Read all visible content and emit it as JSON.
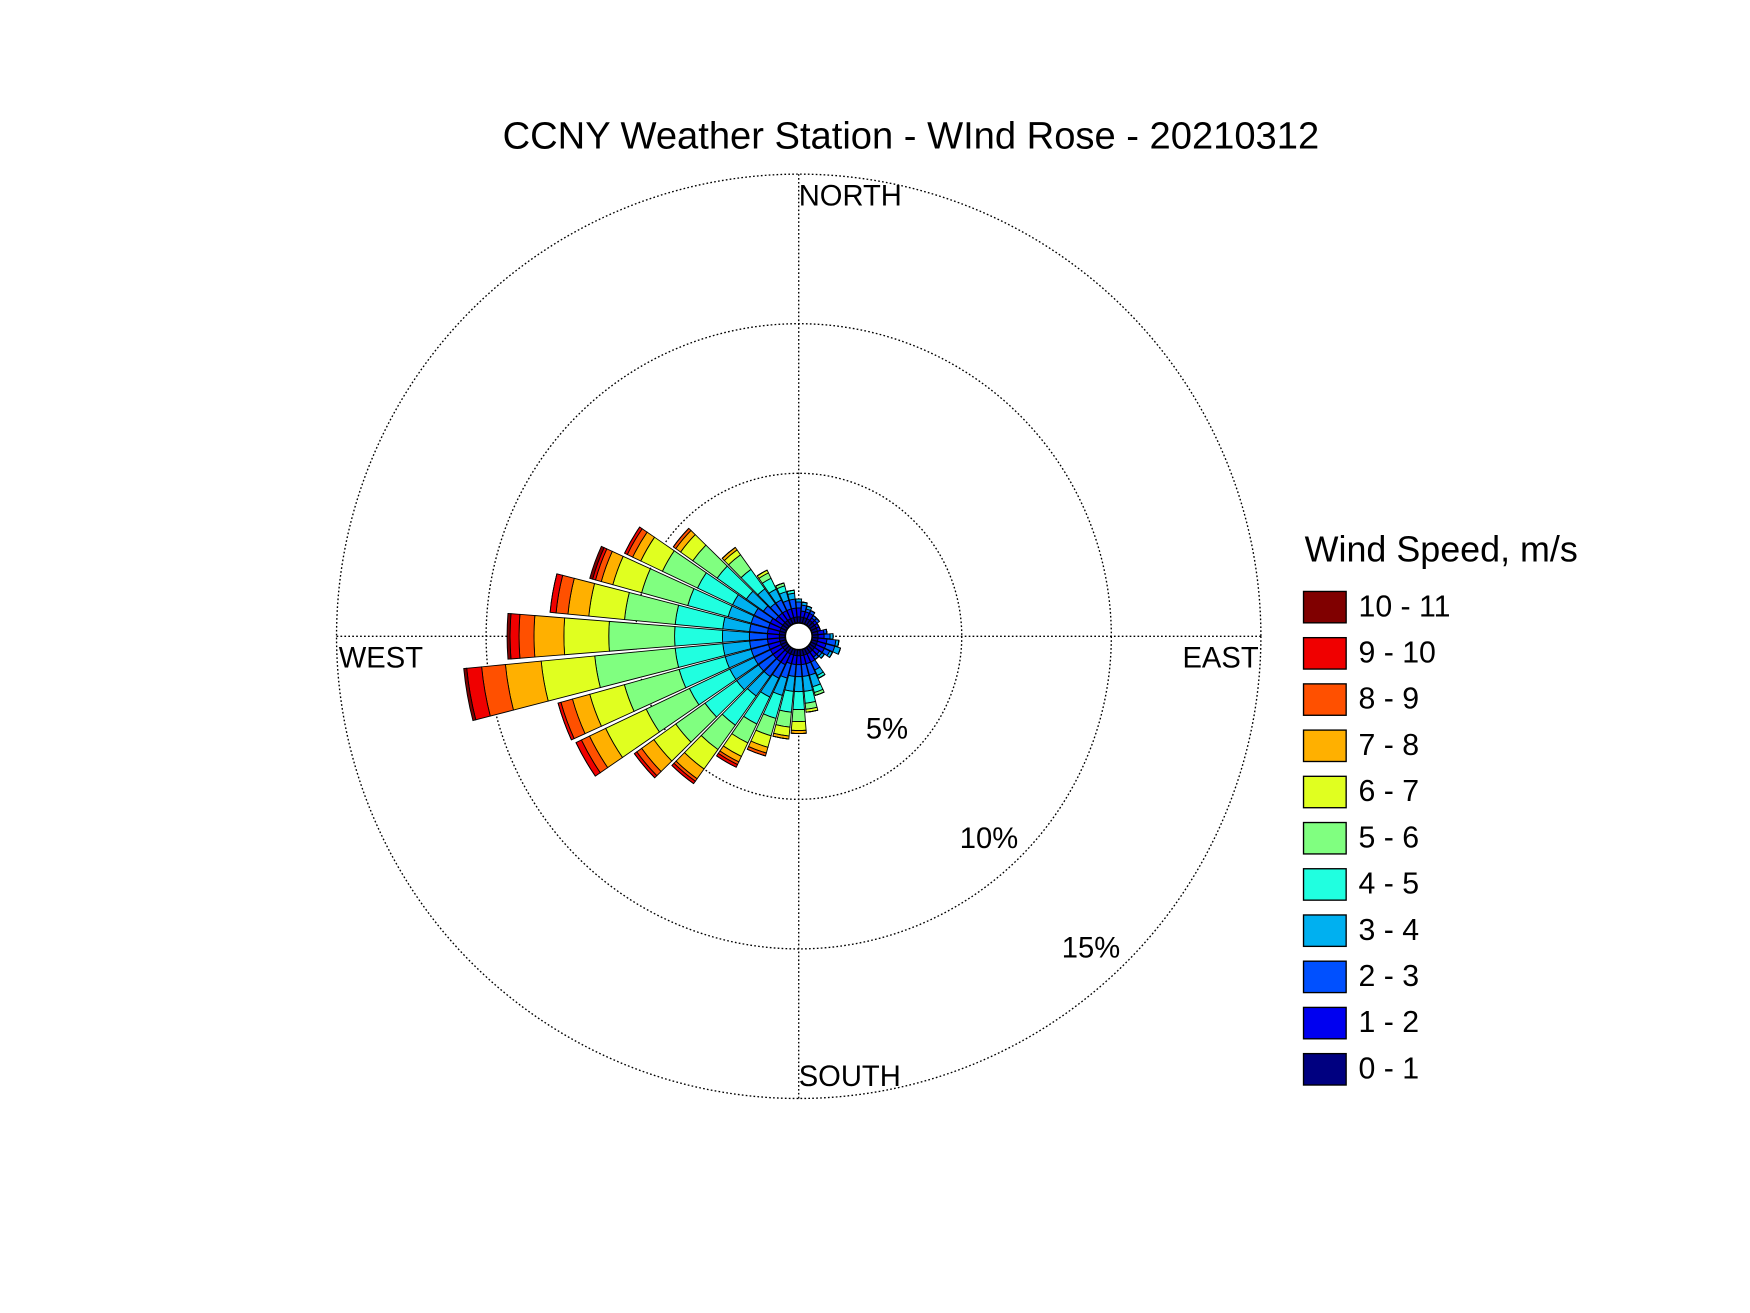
{
  "chart_data": {
    "type": "windrose",
    "title": "CCNY Weather Station - WInd Rose - 20210312",
    "legend_title": "Wind Speed, m/s",
    "axis_labels": [
      "NORTH",
      "EAST",
      "SOUTH",
      "WEST"
    ],
    "categories": [
      null,
      null,
      null,
      null,
      null,
      null,
      null,
      null,
      null,
      null,
      null,
      null,
      null,
      null,
      null,
      null,
      null,
      null,
      null,
      null,
      null,
      null,
      null,
      null,
      null,
      null,
      null,
      null,
      null,
      null,
      null,
      null,
      null,
      null,
      null,
      null
    ],
    "rlim": [
      0,
      15
    ],
    "rticks": [
      {
        "value": 5,
        "label": "5%"
      },
      {
        "value": 10,
        "label": "10%"
      },
      {
        "value": 15,
        "label": "15%"
      }
    ],
    "grid": true,
    "series": [
      {
        "name": "0 - 1",
        "color": "#000080",
        "values": [
          0.2,
          0.2,
          0.2,
          0.2,
          0.2,
          0.2,
          0.2,
          0.2,
          0.2,
          0.2,
          0.2,
          0.2,
          0.2,
          0.2,
          0.2,
          0.2,
          0.2,
          0.2,
          0.2,
          0.2,
          0.2,
          0.2,
          0.2,
          0.2,
          0.2,
          0.2,
          0.2,
          0.2,
          0.2,
          0.2,
          0.2,
          0.2,
          0.2,
          0.2,
          0.2,
          0.2
        ]
      },
      {
        "name": "1 - 2",
        "color": "#0000f0",
        "values": [
          0.3,
          0.2,
          0.2,
          0.2,
          0.1,
          0.1,
          0.1,
          0.1,
          0.2,
          0.2,
          0.3,
          0.3,
          0.3,
          0.2,
          0.2,
          0.3,
          0.3,
          0.3,
          0.3,
          0.3,
          0.3,
          0.4,
          0.4,
          0.4,
          0.4,
          0.4,
          0.4,
          0.4,
          0.4,
          0.4,
          0.4,
          0.3,
          0.3,
          0.3,
          0.3,
          0.3
        ]
      },
      {
        "name": "2 - 3",
        "color": "#0050ff",
        "values": [
          0.2,
          0.2,
          0.1,
          0.1,
          0.1,
          0.1,
          0,
          0,
          0.1,
          0.2,
          0.3,
          0.3,
          0.2,
          0.1,
          0.1,
          0.3,
          0.4,
          0.4,
          0.4,
          0.4,
          0.5,
          0.5,
          0.6,
          0.6,
          0.6,
          0.6,
          0.6,
          0.6,
          0.6,
          0.6,
          0.6,
          0.5,
          0.4,
          0.4,
          0.3,
          0.3
        ]
      },
      {
        "name": "3 - 4",
        "color": "#00b0f0",
        "values": [
          0.1,
          0.1,
          0.1,
          0,
          0,
          0,
          0,
          0,
          0,
          0.1,
          0.1,
          0.2,
          0.1,
          0.1,
          0,
          0.2,
          0.4,
          0.5,
          0.5,
          0.5,
          0.6,
          0.7,
          0.8,
          0.9,
          0.9,
          0.9,
          0.9,
          0.9,
          0.9,
          0.8,
          0.8,
          0.7,
          0.6,
          0.4,
          0.3,
          0.2
        ]
      },
      {
        "name": "4 - 5",
        "color": "#20ffe0",
        "values": [
          0,
          0,
          0,
          0,
          0,
          0,
          0,
          0,
          0,
          0,
          0,
          0,
          0,
          0,
          0,
          0.1,
          0.2,
          0.4,
          0.6,
          0.7,
          0.8,
          1.0,
          1.2,
          1.3,
          1.5,
          1.6,
          1.6,
          1.6,
          1.6,
          1.4,
          1.3,
          1.2,
          0.8,
          0.4,
          0.2,
          0.1
        ]
      },
      {
        "name": "5 - 6",
        "color": "#80ff80",
        "values": [
          0,
          0,
          0,
          0,
          0,
          0,
          0,
          0,
          0,
          0,
          0,
          0,
          0,
          0,
          0,
          0,
          0.1,
          0.2,
          0.4,
          0.5,
          0.6,
          0.7,
          1.0,
          1.2,
          1.6,
          1.9,
          2.7,
          2.2,
          1.7,
          1.6,
          1.3,
          1.0,
          0.6,
          0.2,
          0.1,
          0
        ]
      },
      {
        "name": "6 - 7",
        "color": "#e0ff20",
        "values": [
          0,
          0,
          0,
          0,
          0,
          0,
          0,
          0,
          0,
          0,
          0,
          0,
          0,
          0,
          0,
          0,
          0,
          0.1,
          0.3,
          0.3,
          0.4,
          0.5,
          0.8,
          0.9,
          1.5,
          1.2,
          1.8,
          1.5,
          1.2,
          1.0,
          0.8,
          0.5,
          0.2,
          0.1,
          0,
          0
        ]
      },
      {
        "name": "7 - 8",
        "color": "#ffb000",
        "values": [
          0,
          0,
          0,
          0,
          0,
          0,
          0,
          0,
          0,
          0,
          0,
          0,
          0,
          0,
          0,
          0,
          0,
          0,
          0.1,
          0.1,
          0.2,
          0.2,
          0.4,
          0.5,
          0.6,
          0.6,
          1.2,
          1.0,
          0.7,
          0.4,
          0.3,
          0.2,
          0.1,
          0,
          0,
          0
        ]
      },
      {
        "name": "8 - 9",
        "color": "#ff5000",
        "values": [
          0,
          0,
          0,
          0,
          0,
          0,
          0,
          0,
          0,
          0,
          0,
          0,
          0,
          0,
          0,
          0,
          0,
          0,
          0,
          0,
          0.1,
          0.1,
          0.1,
          0.2,
          0.3,
          0.4,
          0.8,
          0.5,
          0.4,
          0.2,
          0.2,
          0.1,
          0,
          0,
          0,
          0
        ]
      },
      {
        "name": "9 - 10",
        "color": "#f00000",
        "values": [
          0,
          0,
          0,
          0,
          0,
          0,
          0,
          0,
          0,
          0,
          0,
          0,
          0,
          0,
          0,
          0,
          0,
          0,
          0,
          0,
          0,
          0.1,
          0.1,
          0.1,
          0.2,
          0.1,
          0.5,
          0.3,
          0.2,
          0.1,
          0.1,
          0,
          0,
          0,
          0,
          0
        ]
      },
      {
        "name": "10 - 11",
        "color": "#800000",
        "values": [
          0,
          0,
          0,
          0,
          0,
          0,
          0,
          0,
          0,
          0,
          0,
          0,
          0,
          0,
          0,
          0,
          0,
          0,
          0,
          0,
          0,
          0,
          0,
          0,
          0,
          0,
          0.1,
          0.1,
          0,
          0.1,
          0,
          0,
          0,
          0,
          0,
          0
        ]
      }
    ]
  }
}
